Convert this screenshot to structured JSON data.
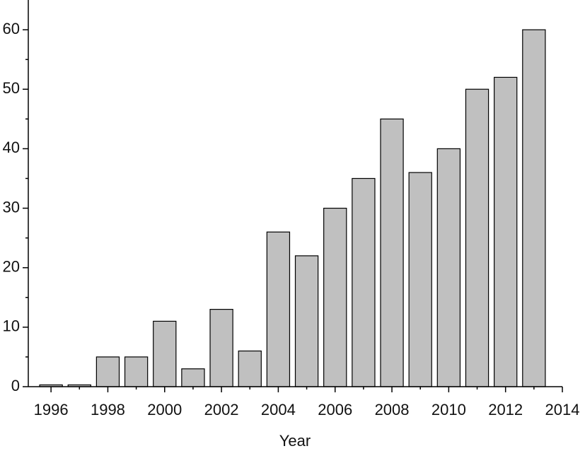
{
  "chart_data": {
    "type": "bar",
    "x_label": "Year",
    "x": [
      1996,
      1997,
      1998,
      1999,
      2000,
      2001,
      2002,
      2003,
      2004,
      2005,
      2006,
      2007,
      2008,
      2009,
      2010,
      2011,
      2012,
      2013
    ],
    "values": [
      0.3,
      0.3,
      5,
      5,
      11,
      3,
      13,
      6,
      26,
      22,
      30,
      35,
      45,
      36,
      40,
      50,
      52,
      60
    ],
    "color": "#c0c0c0",
    "xlim": [
      1995.2,
      2014
    ],
    "xticks": [
      1996,
      1998,
      2000,
      2002,
      2004,
      2006,
      2008,
      2010,
      2012,
      2014
    ],
    "xminorticks": [
      1997,
      1999,
      2001,
      2003,
      2005,
      2007,
      2009,
      2011,
      2013
    ],
    "ylim": [
      0,
      65
    ],
    "yticks": [
      0,
      10,
      20,
      30,
      40,
      50,
      60
    ],
    "yminorticks": [
      5,
      15,
      25,
      35,
      45,
      55
    ]
  }
}
